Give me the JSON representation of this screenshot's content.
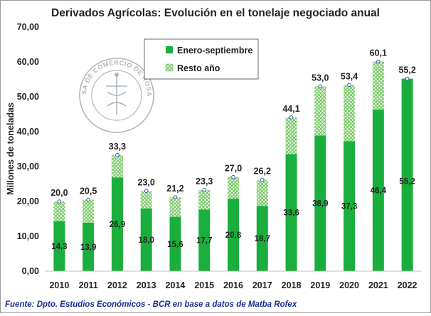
{
  "chart_data": {
    "type": "bar",
    "stacked": true,
    "title": "Derivados Agrícolas: Evolución en el tonelaje negociado anual",
    "ylabel": "Millones de toneladas",
    "xlabel": "",
    "ylim": [
      0,
      70
    ],
    "yticks": [
      "0,00",
      "10,00",
      "20,00",
      "30,00",
      "40,00",
      "50,00",
      "60,00",
      "70,00"
    ],
    "categories": [
      "2010",
      "2011",
      "2012",
      "2013",
      "2014",
      "2015",
      "2016",
      "2017",
      "2018",
      "2019",
      "2020",
      "2021",
      "2022"
    ],
    "series": [
      {
        "name": "Enero-septiembre",
        "color": "#1aaf3c",
        "values": [
          14.3,
          13.9,
          26.9,
          18.0,
          15.6,
          17.7,
          20.8,
          18.7,
          33.6,
          38.9,
          37.3,
          46.4,
          55.2
        ],
        "labels": [
          "14,3",
          "13,9",
          "26,9",
          "18,0",
          "15,6",
          "17,7",
          "20,8",
          "18,7",
          "33,6",
          "38,9",
          "37,3",
          "46,4",
          "55,2"
        ]
      },
      {
        "name": "Resto año",
        "color": "#8ed57e",
        "values": [
          5.7,
          6.6,
          6.4,
          5.0,
          5.6,
          5.6,
          6.2,
          7.5,
          10.5,
          14.1,
          16.1,
          13.7,
          0
        ],
        "labels": []
      }
    ],
    "totals": [
      20.0,
      20.5,
      33.3,
      23.0,
      21.2,
      23.3,
      27.0,
      26.2,
      44.1,
      53.0,
      53.4,
      60.1,
      55.2
    ],
    "total_labels": [
      "20,0",
      "20,5",
      "33,3",
      "23,0",
      "21,2",
      "23,3",
      "27,0",
      "26,2",
      "44,1",
      "53,0",
      "53,4",
      "60,1",
      "55,2"
    ],
    "legend_position": "top-center",
    "grid": false
  },
  "watermark_text": "BOLSA DE COMERCIO DE ROSARIO",
  "source": "Fuente: Dpto. Estudios Económicos - BCR en base a datos de Matba Rofex"
}
